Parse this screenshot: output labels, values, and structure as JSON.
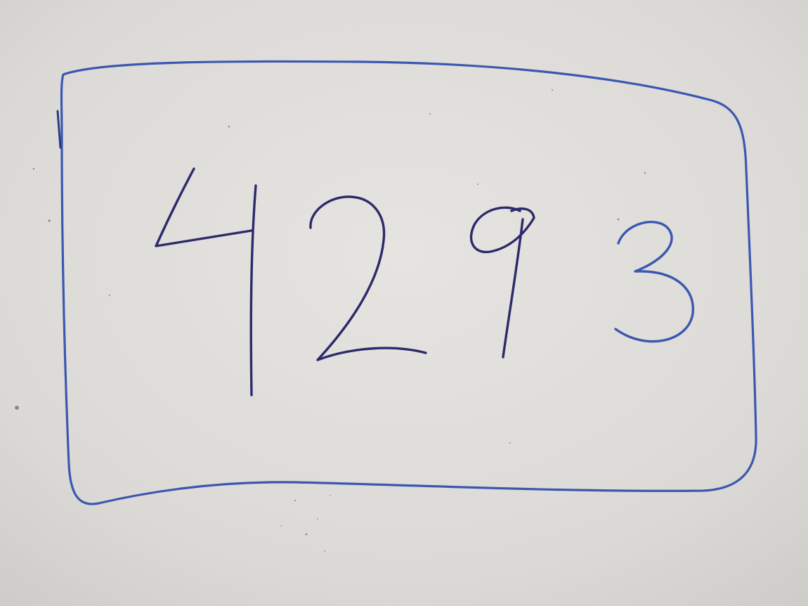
{
  "whiteboard": {
    "handwritten_number": "4293",
    "digits": [
      "4",
      "2",
      "9",
      "3"
    ]
  },
  "colors": {
    "board": "#dcdad6",
    "border_ink": "#3b57b0",
    "digit_ink": "#2c2a6b"
  }
}
